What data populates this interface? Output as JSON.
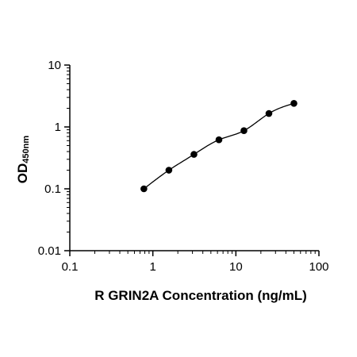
{
  "chart_data": {
    "type": "scatter",
    "title": "",
    "xlabel": "R GRIN2A Concentration (ng/mL)",
    "ylabel": "OD",
    "ylabel_subscript": "450nm",
    "xscale": "log",
    "yscale": "log",
    "xlim": [
      0.1,
      100
    ],
    "ylim": [
      0.01,
      10
    ],
    "xticks": [
      0.1,
      1,
      10,
      100
    ],
    "xtick_labels": [
      "0.1",
      "1",
      "10",
      "100"
    ],
    "yticks": [
      0.01,
      0.1,
      1,
      10
    ],
    "ytick_labels": [
      "0.01",
      "0.1",
      "1",
      "10"
    ],
    "grid": false,
    "series": [
      {
        "x": [
          0.78,
          1.56,
          3.125,
          6.25,
          12.5,
          25,
          50
        ],
        "y": [
          0.1,
          0.2,
          0.36,
          0.62,
          0.87,
          1.65,
          2.4
        ],
        "fit_curve": true,
        "marker": "circle",
        "color": "#000000"
      }
    ]
  }
}
